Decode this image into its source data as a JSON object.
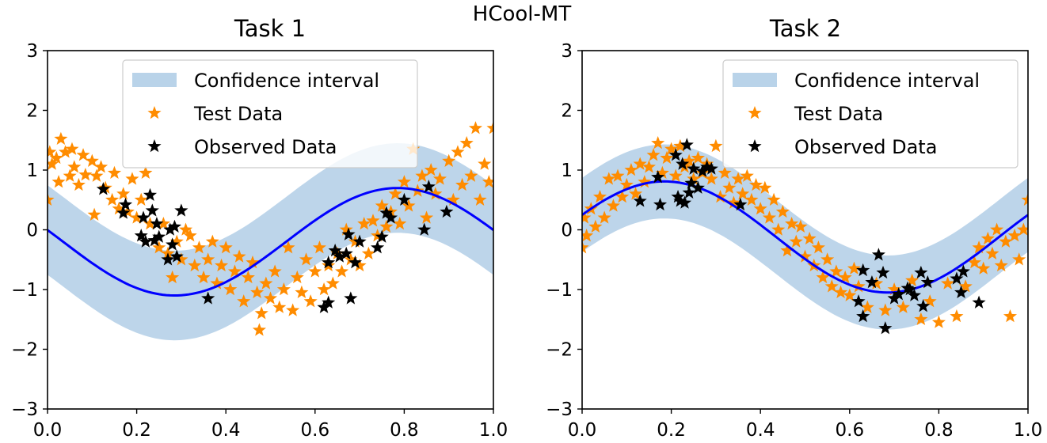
{
  "figure": {
    "suptitle": "HCool-MT"
  },
  "chart_data": [
    {
      "type": "scatter",
      "title": "Task 1",
      "xlabel": "",
      "ylabel": "",
      "xlim": [
        0.0,
        1.0
      ],
      "ylim": [
        -3,
        3
      ],
      "x_ticks": [
        "0.0",
        "0.2",
        "0.4",
        "0.6",
        "0.8",
        "1.0"
      ],
      "y_ticks": [
        "3",
        "2",
        "1",
        "0",
        "−1",
        "−2",
        "−3"
      ],
      "grid": false,
      "legend_position": "top-center",
      "legend": [
        "Confidence interval",
        "Test Data",
        "Observed Data"
      ],
      "colors": {
        "band": "#b9d3e9",
        "mean": "#0000ff",
        "test": "#ff8c00",
        "observed": "#000000"
      },
      "mean_fn": {
        "kind": "sinusoid",
        "offset": -0.2,
        "amp": 0.9,
        "freq": 2.0,
        "phase": 0.93,
        "ramp": 0.0
      },
      "band_halfwidth": 0.75,
      "observed_points": [
        [
          0.125,
          0.68
        ],
        [
          0.17,
          0.28
        ],
        [
          0.175,
          0.42
        ],
        [
          0.21,
          -0.1
        ],
        [
          0.215,
          0.2
        ],
        [
          0.22,
          -0.2
        ],
        [
          0.23,
          0.58
        ],
        [
          0.235,
          0.32
        ],
        [
          0.24,
          -0.18
        ],
        [
          0.245,
          0.1
        ],
        [
          0.25,
          -0.12
        ],
        [
          0.27,
          -0.5
        ],
        [
          0.275,
          0.0
        ],
        [
          0.28,
          -0.25
        ],
        [
          0.285,
          0.05
        ],
        [
          0.29,
          -0.45
        ],
        [
          0.3,
          0.32
        ],
        [
          0.36,
          -1.15
        ],
        [
          0.62,
          -1.3
        ],
        [
          0.63,
          -1.22
        ],
        [
          0.63,
          -0.55
        ],
        [
          0.645,
          -0.35
        ],
        [
          0.655,
          -0.45
        ],
        [
          0.67,
          -0.4
        ],
        [
          0.675,
          -0.08
        ],
        [
          0.68,
          -1.15
        ],
        [
          0.69,
          -0.55
        ],
        [
          0.7,
          -0.2
        ],
        [
          0.74,
          -0.3
        ],
        [
          0.75,
          -0.12
        ],
        [
          0.76,
          0.28
        ],
        [
          0.77,
          0.2
        ],
        [
          0.8,
          0.5
        ],
        [
          0.845,
          0.0
        ],
        [
          0.855,
          0.72
        ],
        [
          0.895,
          0.3
        ]
      ],
      "test_points": [
        [
          0.0,
          0.5
        ],
        [
          0.005,
          1.3
        ],
        [
          0.01,
          1.1
        ],
        [
          0.02,
          1.2
        ],
        [
          0.025,
          0.8
        ],
        [
          0.03,
          1.52
        ],
        [
          0.04,
          1.3
        ],
        [
          0.05,
          0.9
        ],
        [
          0.055,
          1.35
        ],
        [
          0.06,
          1.05
        ],
        [
          0.07,
          0.75
        ],
        [
          0.08,
          1.25
        ],
        [
          0.085,
          0.92
        ],
        [
          0.1,
          1.15
        ],
        [
          0.105,
          0.25
        ],
        [
          0.11,
          0.9
        ],
        [
          0.12,
          1.05
        ],
        [
          0.13,
          0.7
        ],
        [
          0.145,
          0.5
        ],
        [
          0.15,
          0.95
        ],
        [
          0.16,
          0.35
        ],
        [
          0.17,
          0.6
        ],
        [
          0.18,
          0.3
        ],
        [
          0.19,
          0.85
        ],
        [
          0.2,
          0.2
        ],
        [
          0.21,
          0.5
        ],
        [
          0.22,
          0.95
        ],
        [
          0.23,
          0.1
        ],
        [
          0.25,
          -0.3
        ],
        [
          0.26,
          0.1
        ],
        [
          0.27,
          -0.4
        ],
        [
          0.28,
          -0.8
        ],
        [
          0.29,
          -0.2
        ],
        [
          0.3,
          -0.5
        ],
        [
          0.31,
          0.0
        ],
        [
          0.32,
          -0.1
        ],
        [
          0.33,
          -0.6
        ],
        [
          0.34,
          -0.3
        ],
        [
          0.35,
          -0.8
        ],
        [
          0.36,
          -0.5
        ],
        [
          0.37,
          -0.2
        ],
        [
          0.38,
          -0.9
        ],
        [
          0.39,
          -0.6
        ],
        [
          0.4,
          -0.3
        ],
        [
          0.41,
          -1.0
        ],
        [
          0.42,
          -0.7
        ],
        [
          0.43,
          -0.45
        ],
        [
          0.44,
          -1.2
        ],
        [
          0.45,
          -0.8
        ],
        [
          0.46,
          -0.55
        ],
        [
          0.47,
          -1.05
        ],
        [
          0.475,
          -1.68
        ],
        [
          0.48,
          -1.4
        ],
        [
          0.49,
          -0.9
        ],
        [
          0.5,
          -1.15
        ],
        [
          0.51,
          -0.7
        ],
        [
          0.52,
          -1.3
        ],
        [
          0.53,
          -1.0
        ],
        [
          0.54,
          -0.3
        ],
        [
          0.55,
          -1.35
        ],
        [
          0.56,
          -0.8
        ],
        [
          0.57,
          -1.05
        ],
        [
          0.58,
          -0.5
        ],
        [
          0.59,
          -1.2
        ],
        [
          0.6,
          -0.7
        ],
        [
          0.61,
          -0.3
        ],
        [
          0.62,
          -1.0
        ],
        [
          0.63,
          -0.6
        ],
        [
          0.64,
          -0.9
        ],
        [
          0.65,
          -0.4
        ],
        [
          0.66,
          -0.7
        ],
        [
          0.67,
          0.0
        ],
        [
          0.68,
          -0.5
        ],
        [
          0.69,
          -0.2
        ],
        [
          0.7,
          -0.6
        ],
        [
          0.71,
          0.1
        ],
        [
          0.72,
          -0.4
        ],
        [
          0.73,
          0.15
        ],
        [
          0.74,
          -0.1
        ],
        [
          0.75,
          0.4
        ],
        [
          0.76,
          0.05
        ],
        [
          0.77,
          0.3
        ],
        [
          0.78,
          0.6
        ],
        [
          0.79,
          0.1
        ],
        [
          0.8,
          0.8
        ],
        [
          0.81,
          0.4
        ],
        [
          0.82,
          1.35
        ],
        [
          0.83,
          0.65
        ],
        [
          0.84,
          0.9
        ],
        [
          0.85,
          0.2
        ],
        [
          0.86,
          1.0
        ],
        [
          0.87,
          0.6
        ],
        [
          0.88,
          0.85
        ],
        [
          0.9,
          1.15
        ],
        [
          0.91,
          0.5
        ],
        [
          0.92,
          1.3
        ],
        [
          0.93,
          0.75
        ],
        [
          0.94,
          1.45
        ],
        [
          0.95,
          0.9
        ],
        [
          0.96,
          1.7
        ],
        [
          0.97,
          0.5
        ],
        [
          0.98,
          1.1
        ],
        [
          0.99,
          0.8
        ],
        [
          1.0,
          1.7
        ]
      ]
    },
    {
      "type": "scatter",
      "title": "Task 2",
      "xlabel": "",
      "ylabel": "",
      "xlim": [
        0.0,
        1.0
      ],
      "ylim": [
        -3,
        3
      ],
      "x_ticks": [
        "0.0",
        "0.2",
        "0.4",
        "0.6",
        "0.8",
        "1.0"
      ],
      "y_ticks": [
        "3",
        "2",
        "1",
        "0",
        "−1",
        "−2",
        "−3"
      ],
      "grid": false,
      "legend_position": "top-right",
      "legend": [
        "Confidence interval",
        "Test Data",
        "Observed Data"
      ],
      "colors": {
        "band": "#b9d3e9",
        "mean": "#0000ff",
        "test": "#ff8c00",
        "observed": "#000000"
      },
      "mean_fn": {
        "kind": "sinusoid",
        "offset": -0.12,
        "amp": 0.93,
        "freq": 2.0,
        "phase": 0.13,
        "ramp": 0.0
      },
      "band_halfwidth": 0.62,
      "observed_points": [
        [
          0.13,
          0.48
        ],
        [
          0.17,
          0.88
        ],
        [
          0.175,
          0.42
        ],
        [
          0.21,
          1.25
        ],
        [
          0.215,
          0.55
        ],
        [
          0.22,
          0.48
        ],
        [
          0.225,
          1.1
        ],
        [
          0.23,
          0.45
        ],
        [
          0.235,
          1.42
        ],
        [
          0.24,
          0.62
        ],
        [
          0.245,
          0.78
        ],
        [
          0.25,
          1.02
        ],
        [
          0.26,
          0.7
        ],
        [
          0.27,
          0.98
        ],
        [
          0.28,
          1.05
        ],
        [
          0.29,
          1.02
        ],
        [
          0.355,
          0.42
        ],
        [
          0.62,
          -1.2
        ],
        [
          0.63,
          -1.45
        ],
        [
          0.63,
          -0.68
        ],
        [
          0.65,
          -0.88
        ],
        [
          0.665,
          -0.42
        ],
        [
          0.675,
          -0.72
        ],
        [
          0.68,
          -1.65
        ],
        [
          0.7,
          -1.15
        ],
        [
          0.71,
          -1.08
        ],
        [
          0.73,
          -0.98
        ],
        [
          0.735,
          -1.0
        ],
        [
          0.745,
          -1.1
        ],
        [
          0.76,
          -0.72
        ],
        [
          0.765,
          -1.28
        ],
        [
          0.775,
          -0.88
        ],
        [
          0.84,
          -0.82
        ],
        [
          0.85,
          -1.05
        ],
        [
          0.855,
          -0.7
        ],
        [
          0.89,
          -1.22
        ]
      ],
      "test_points": [
        [
          0.0,
          -0.3
        ],
        [
          0.005,
          0.2
        ],
        [
          0.01,
          -0.1
        ],
        [
          0.02,
          0.35
        ],
        [
          0.03,
          0.05
        ],
        [
          0.04,
          0.55
        ],
        [
          0.05,
          0.2
        ],
        [
          0.06,
          0.85
        ],
        [
          0.07,
          0.4
        ],
        [
          0.08,
          0.9
        ],
        [
          0.09,
          0.55
        ],
        [
          0.1,
          0.75
        ],
        [
          0.11,
          1.0
        ],
        [
          0.12,
          0.6
        ],
        [
          0.13,
          1.1
        ],
        [
          0.14,
          0.8
        ],
        [
          0.15,
          1.05
        ],
        [
          0.16,
          1.25
        ],
        [
          0.17,
          1.45
        ],
        [
          0.18,
          0.95
        ],
        [
          0.19,
          1.2
        ],
        [
          0.2,
          1.35
        ],
        [
          0.21,
          0.9
        ],
        [
          0.22,
          1.4
        ],
        [
          0.23,
          1.05
        ],
        [
          0.24,
          1.15
        ],
        [
          0.25,
          0.85
        ],
        [
          0.26,
          1.2
        ],
        [
          0.27,
          0.95
        ],
        [
          0.28,
          1.1
        ],
        [
          0.29,
          0.85
        ],
        [
          0.3,
          1.4
        ],
        [
          0.31,
          0.55
        ],
        [
          0.32,
          0.95
        ],
        [
          0.33,
          0.7
        ],
        [
          0.34,
          0.45
        ],
        [
          0.35,
          0.85
        ],
        [
          0.36,
          0.6
        ],
        [
          0.37,
          0.9
        ],
        [
          0.38,
          0.5
        ],
        [
          0.39,
          0.75
        ],
        [
          0.4,
          0.35
        ],
        [
          0.41,
          0.7
        ],
        [
          0.42,
          0.2
        ],
        [
          0.43,
          0.5
        ],
        [
          0.44,
          0.0
        ],
        [
          0.45,
          0.3
        ],
        [
          0.46,
          -0.35
        ],
        [
          0.47,
          0.1
        ],
        [
          0.48,
          -0.2
        ],
        [
          0.49,
          0.05
        ],
        [
          0.5,
          -0.45
        ],
        [
          0.51,
          -0.15
        ],
        [
          0.52,
          -0.6
        ],
        [
          0.53,
          -0.3
        ],
        [
          0.54,
          -0.8
        ],
        [
          0.55,
          -0.5
        ],
        [
          0.56,
          -0.95
        ],
        [
          0.57,
          -0.7
        ],
        [
          0.58,
          -1.05
        ],
        [
          0.59,
          -0.8
        ],
        [
          0.6,
          -1.1
        ],
        [
          0.61,
          -0.65
        ],
        [
          0.62,
          -0.95
        ],
        [
          0.64,
          -1.3
        ],
        [
          0.66,
          -0.9
        ],
        [
          0.68,
          -1.35
        ],
        [
          0.7,
          -1.0
        ],
        [
          0.72,
          -1.3
        ],
        [
          0.74,
          -0.85
        ],
        [
          0.76,
          -1.5
        ],
        [
          0.78,
          -1.2
        ],
        [
          0.8,
          -1.55
        ],
        [
          0.82,
          -0.9
        ],
        [
          0.84,
          -1.45
        ],
        [
          0.86,
          -0.95
        ],
        [
          0.88,
          -0.55
        ],
        [
          0.89,
          -0.3
        ],
        [
          0.9,
          -0.65
        ],
        [
          0.91,
          -0.15
        ],
        [
          0.92,
          -0.4
        ],
        [
          0.93,
          0.0
        ],
        [
          0.94,
          -0.6
        ],
        [
          0.95,
          -0.2
        ],
        [
          0.96,
          -1.45
        ],
        [
          0.97,
          -0.1
        ],
        [
          0.98,
          -0.5
        ],
        [
          0.99,
          0.0
        ],
        [
          1.0,
          0.5
        ]
      ]
    }
  ]
}
